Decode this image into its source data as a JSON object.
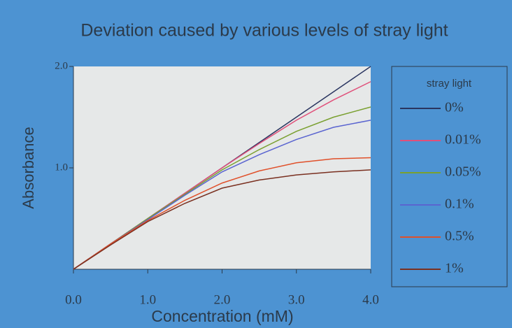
{
  "chart_data": {
    "type": "line",
    "title": "Deviation caused by various levels of stray light",
    "x_label": "Concentration (mM)",
    "y_label": "Absorbance",
    "legend_title": "stray light",
    "x": [
      0,
      0.5,
      1,
      1.5,
      2,
      2.5,
      3,
      3.5,
      4
    ],
    "series": [
      {
        "name": "0%",
        "color": "#2a3560",
        "values": [
          0,
          0.25,
          0.5,
          0.75,
          1.0,
          1.25,
          1.5,
          1.75,
          2.0
        ]
      },
      {
        "name": "0.01%",
        "color": "#e0507a",
        "values": [
          0,
          0.25,
          0.5,
          0.75,
          1.0,
          1.24,
          1.47,
          1.67,
          1.85
        ]
      },
      {
        "name": "0.05%",
        "color": "#7aa030",
        "values": [
          0,
          0.25,
          0.5,
          0.74,
          0.98,
          1.18,
          1.36,
          1.5,
          1.6
        ]
      },
      {
        "name": "0.1%",
        "color": "#5a64d0",
        "values": [
          0,
          0.25,
          0.49,
          0.73,
          0.96,
          1.13,
          1.28,
          1.4,
          1.47
        ]
      },
      {
        "name": "0.5%",
        "color": "#e0502a",
        "values": [
          0,
          0.25,
          0.48,
          0.68,
          0.85,
          0.97,
          1.05,
          1.09,
          1.1
        ]
      },
      {
        "name": "1%",
        "color": "#7a3020",
        "values": [
          0,
          0.24,
          0.47,
          0.65,
          0.8,
          0.88,
          0.93,
          0.96,
          0.98
        ]
      }
    ],
    "xlim": [
      0,
      4
    ],
    "ylim": [
      0,
      2
    ],
    "xticks": [
      {
        "value": 0,
        "label": "0.0"
      },
      {
        "value": 1,
        "label": "1.0"
      },
      {
        "value": 2,
        "label": "2.0"
      },
      {
        "value": 3,
        "label": "3.0"
      },
      {
        "value": 4,
        "label": "4.0"
      }
    ],
    "yticks": [
      {
        "value": 1,
        "label": "1.0"
      },
      {
        "value": 2,
        "label": "2.0"
      }
    ]
  }
}
